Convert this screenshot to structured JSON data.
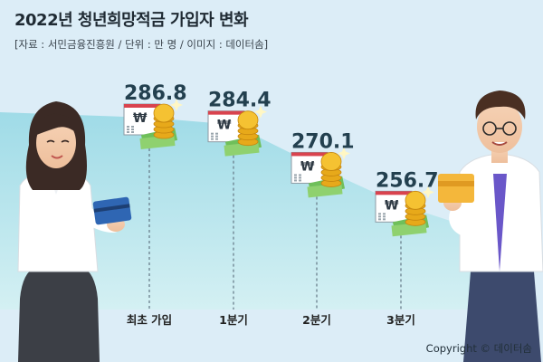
{
  "title": "2022년 청년희망적금 가입자 변화",
  "source": "[자료 : 서민금융진흥원 / 단위 : 만 명 / 이미지 : 데이터솜]",
  "copyright": "Copyright © 데이터솜",
  "chart_data": {
    "type": "area",
    "title": "2022년 청년희망적금 가입자 변화",
    "unit": "만 명",
    "categories": [
      "최초 가입",
      "1분기",
      "2분기",
      "3분기"
    ],
    "values": [
      286.8,
      284.4,
      270.1,
      256.7
    ],
    "value_labels": [
      "286.8",
      "284.4",
      "270.1",
      "256.7"
    ],
    "grid": false,
    "legend": "none",
    "colors": {
      "area_top": "#9fdbe7",
      "area_bottom": "#cdeef2",
      "background": "#dcedf7",
      "dash": "#6a7f8c",
      "value": "#23404f"
    }
  }
}
